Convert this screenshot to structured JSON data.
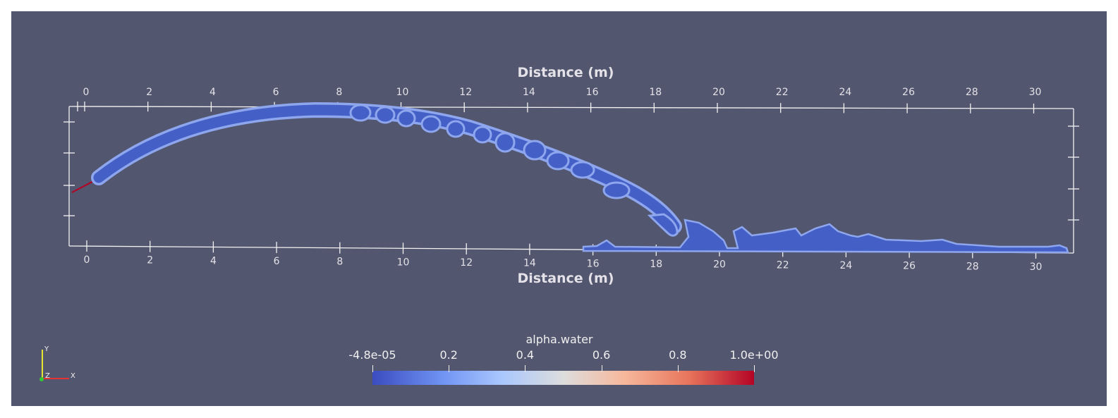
{
  "window": {
    "background": "#52566e",
    "axis_color": "#f2f2f2",
    "tick_label_color": "#e4e2e8"
  },
  "view": {
    "axes_top": {
      "title": "Distance (m)",
      "tick_labels": [
        "0",
        "2",
        "4",
        "6",
        "8",
        "10",
        "12",
        "14",
        "16",
        "18",
        "20",
        "22",
        "24",
        "26",
        "28",
        "30"
      ]
    },
    "axes_bottom": {
      "title": "Distance (m)",
      "tick_labels": [
        "0",
        "2",
        "4",
        "6",
        "8",
        "10",
        "12",
        "14",
        "16",
        "18",
        "20",
        "22",
        "24",
        "26",
        "28",
        "30"
      ]
    },
    "jet": {
      "fill_color": "#4460c6",
      "edge_color": "#8ea6ee",
      "nozzle_color": "#b40426"
    }
  },
  "color_legend": {
    "title": "alpha.water",
    "labels": [
      "-4.8e-05",
      "0.2",
      "0.4",
      "0.6",
      "0.8",
      "1.0e+00"
    ],
    "range": [
      -4.8e-05,
      1.0
    ],
    "colormap": [
      "#3b4cc0",
      "#6f92f3",
      "#aac7fd",
      "#dddddd",
      "#f7b89c",
      "#e7745b",
      "#b40426"
    ]
  },
  "orientation_axes": {
    "x_label": "X",
    "y_label": "Y",
    "z_label": "Z",
    "x_color": "#e63232",
    "y_color": "#e6e632",
    "z_color": "#32c832"
  }
}
